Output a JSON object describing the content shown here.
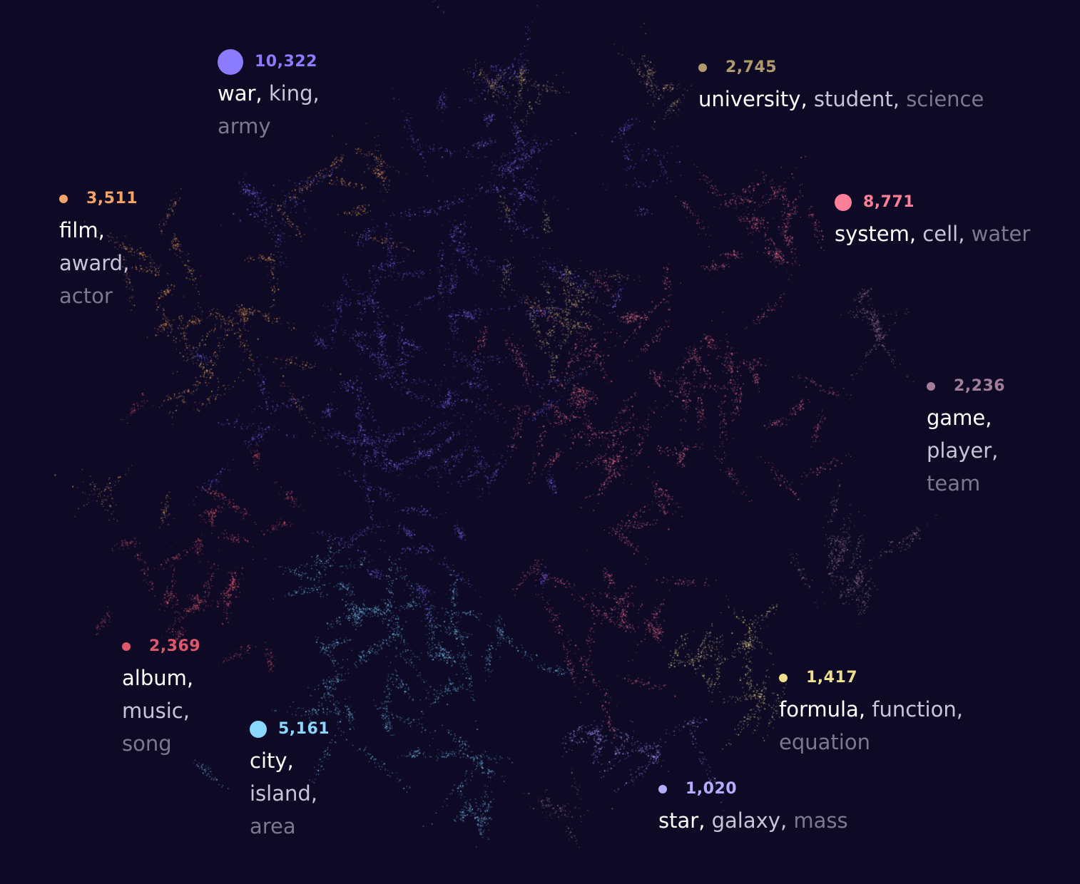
{
  "chart_data": {
    "type": "scatter",
    "background": "#0e0a26",
    "clusters": [
      {
        "id": "war",
        "count": "10,322",
        "keywords": [
          "war",
          "king",
          "army"
        ],
        "lines": [
          [
            "war",
            "king"
          ],
          [
            "army"
          ]
        ],
        "color": "#7f6cf2",
        "dot_color": "#8b7bff",
        "dot": 36
      },
      {
        "id": "university",
        "count": "2,745",
        "keywords": [
          "university",
          "student",
          "science"
        ],
        "lines": [
          [
            "university",
            "student",
            "science"
          ]
        ],
        "color": "#c1a36e",
        "dot_color": "#b19a6b",
        "dot": 12
      },
      {
        "id": "film",
        "count": "3,511",
        "keywords": [
          "film",
          "award",
          "actor"
        ],
        "lines": [
          [
            "film"
          ],
          [
            "award"
          ],
          [
            "actor"
          ]
        ],
        "color": "#f0a05a",
        "dot_color": "#f6a36a",
        "dot": 12
      },
      {
        "id": "system",
        "count": "8,771",
        "keywords": [
          "system",
          "cell",
          "water"
        ],
        "lines": [
          [
            "system",
            "cell",
            "water"
          ]
        ],
        "color": "#f3708a",
        "dot_color": "#ff7f98",
        "dot": 24
      },
      {
        "id": "game",
        "count": "2,236",
        "keywords": [
          "game",
          "player",
          "team"
        ],
        "lines": [
          [
            "game"
          ],
          [
            "player"
          ],
          [
            "team"
          ]
        ],
        "color": "#9b7591",
        "dot_color": "#a07e97",
        "dot": 12
      },
      {
        "id": "album",
        "count": "2,369",
        "keywords": [
          "album",
          "music",
          "song"
        ],
        "lines": [
          [
            "album"
          ],
          [
            "music"
          ],
          [
            "song"
          ]
        ],
        "color": "#e05a6a",
        "dot_color": "#e0566a",
        "dot": 12
      },
      {
        "id": "city",
        "count": "5,161",
        "keywords": [
          "city",
          "island",
          "area"
        ],
        "lines": [
          [
            "city"
          ],
          [
            "island"
          ],
          [
            "area"
          ]
        ],
        "color": "#7cd3ff",
        "dot_color": "#8ad8ff",
        "dot": 24
      },
      {
        "id": "formula",
        "count": "1,417",
        "keywords": [
          "formula",
          "function",
          "equation"
        ],
        "lines": [
          [
            "formula",
            "function"
          ],
          [
            "equation"
          ]
        ],
        "color": "#e7d484",
        "dot_color": "#efdf8c",
        "dot": 12
      },
      {
        "id": "star",
        "count": "1,020",
        "keywords": [
          "star",
          "galaxy",
          "mass"
        ],
        "lines": [
          [
            "star",
            "galaxy",
            "mass"
          ]
        ],
        "color": "#a8a0ff",
        "dot_color": "#b5adff",
        "dot": 12
      }
    ],
    "keyword_colors": [
      "#ffffff",
      "#c9c5d6",
      "#7d7890"
    ]
  }
}
